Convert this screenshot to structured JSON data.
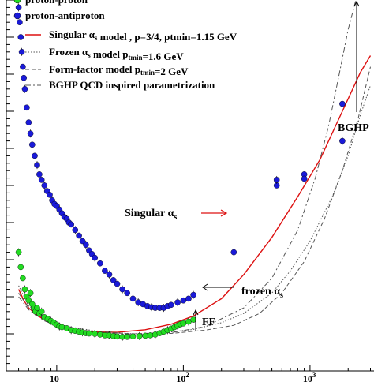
{
  "chart_data": {
    "type": "scatter",
    "x_scale": "log",
    "xlim": [
      4,
      3200
    ],
    "ylim": [
      30,
      130
    ],
    "grid": false,
    "legend_position": "top-left",
    "x_tick_labels": [
      "10",
      "10",
      "10"
    ],
    "x_tick_exponents": [
      "",
      "2",
      "3"
    ],
    "series": [
      {
        "name": "proton-proton",
        "kind": "points",
        "color": "#22dd22",
        "points": [
          [
            5.0,
            62
          ],
          [
            5.2,
            58
          ],
          [
            5.4,
            55
          ],
          [
            5.6,
            52
          ],
          [
            5.8,
            50
          ],
          [
            6.0,
            49
          ],
          [
            6.2,
            51
          ],
          [
            6.4,
            48
          ],
          [
            6.6,
            47
          ],
          [
            6.8,
            46
          ],
          [
            7.0,
            47
          ],
          [
            7.3,
            45.5
          ],
          [
            7.6,
            46
          ],
          [
            8.0,
            44.5
          ],
          [
            8.5,
            44
          ],
          [
            9.0,
            43.5
          ],
          [
            9.5,
            43
          ],
          [
            10,
            42.5
          ],
          [
            10.5,
            42
          ],
          [
            11,
            41.8
          ],
          [
            12,
            41.5
          ],
          [
            13,
            41
          ],
          [
            14,
            40.8
          ],
          [
            15,
            40.6
          ],
          [
            16,
            40.4
          ],
          [
            17,
            40.2
          ],
          [
            18,
            40.1
          ],
          [
            20,
            40
          ],
          [
            22,
            39.8
          ],
          [
            24,
            39.6
          ],
          [
            26,
            39.6
          ],
          [
            28,
            39.4
          ],
          [
            30,
            39.3
          ],
          [
            33,
            39.2
          ],
          [
            36,
            39.2
          ],
          [
            40,
            39.3
          ],
          [
            45,
            39.4
          ],
          [
            50,
            39.5
          ],
          [
            55,
            39.6
          ],
          [
            60,
            39.8
          ],
          [
            65,
            40.2
          ],
          [
            70,
            40.6
          ],
          [
            75,
            41
          ],
          [
            80,
            41.4
          ],
          [
            85,
            41.8
          ],
          [
            90,
            42.2
          ],
          [
            95,
            42.6
          ],
          [
            100,
            42.8
          ],
          [
            110,
            43.3
          ],
          [
            120,
            43.8
          ]
        ]
      },
      {
        "name": "proton-antiproton",
        "kind": "points",
        "color": "#1a1ad8",
        "points": [
          [
            5.0,
            128
          ],
          [
            5.1,
            124
          ],
          [
            5.2,
            120
          ],
          [
            5.3,
            116
          ],
          [
            5.4,
            112
          ],
          [
            5.5,
            109
          ],
          [
            5.6,
            106
          ],
          [
            5.8,
            101
          ],
          [
            6.0,
            97
          ],
          [
            6.2,
            94
          ],
          [
            6.4,
            91
          ],
          [
            6.7,
            88
          ],
          [
            7.0,
            85.5
          ],
          [
            7.3,
            83
          ],
          [
            7.6,
            81.5
          ],
          [
            8.0,
            80
          ],
          [
            8.4,
            78.5
          ],
          [
            8.8,
            77.5
          ],
          [
            9.2,
            76
          ],
          [
            9.6,
            75
          ],
          [
            10,
            74.5
          ],
          [
            10.5,
            73.5
          ],
          [
            11,
            72.5
          ],
          [
            11.5,
            71.5
          ],
          [
            12,
            71
          ],
          [
            12.5,
            70
          ],
          [
            13,
            69.5
          ],
          [
            14,
            68
          ],
          [
            15,
            66.5
          ],
          [
            16,
            65
          ],
          [
            17,
            64
          ],
          [
            18,
            62.5
          ],
          [
            19,
            61.5
          ],
          [
            20,
            60.5
          ],
          [
            22,
            59
          ],
          [
            24,
            57
          ],
          [
            26,
            56
          ],
          [
            28,
            54.5
          ],
          [
            30,
            53.5
          ],
          [
            33,
            52
          ],
          [
            36,
            51
          ],
          [
            40,
            49.5
          ],
          [
            44,
            48.5
          ],
          [
            48,
            48
          ],
          [
            52,
            47.5
          ],
          [
            56,
            47.2
          ],
          [
            60,
            47
          ],
          [
            65,
            47
          ],
          [
            70,
            47
          ],
          [
            75,
            47.5
          ],
          [
            80,
            47.8
          ],
          [
            90,
            48.5
          ],
          [
            100,
            49
          ],
          [
            110,
            49.5
          ],
          [
            120,
            50.5
          ],
          [
            250,
            62
          ],
          [
            546,
            80
          ],
          [
            546,
            81.5
          ],
          [
            900,
            83
          ],
          [
            900,
            81.8
          ],
          [
            1800,
            92
          ],
          [
            1800,
            102
          ]
        ]
      },
      {
        "name": "Singular αs model , p=3/4, ptmin=1.15 GeV",
        "kind": "line",
        "dash": "solid",
        "color": "#dd1111",
        "points": [
          [
            5.0,
            52
          ],
          [
            5.5,
            49
          ],
          [
            6,
            47
          ],
          [
            7,
            45
          ],
          [
            8,
            43.8
          ],
          [
            10,
            42.5
          ],
          [
            12,
            41.7
          ],
          [
            15,
            41
          ],
          [
            20,
            40.5
          ],
          [
            30,
            40.4
          ],
          [
            50,
            41.1
          ],
          [
            80,
            42.6
          ],
          [
            120,
            44.8
          ],
          [
            200,
            49.5
          ],
          [
            300,
            56
          ],
          [
            500,
            66
          ],
          [
            800,
            77
          ],
          [
            1200,
            87
          ],
          [
            1800,
            100
          ],
          [
            2500,
            110.5
          ],
          [
            3000,
            115
          ]
        ]
      },
      {
        "name": "Frozen αs model ptmin=1.6 GeV",
        "kind": "line",
        "dash": "dotted",
        "color": "#555555",
        "points": [
          [
            5,
            53
          ],
          [
            6,
            47.5
          ],
          [
            8,
            44.5
          ],
          [
            12,
            42
          ],
          [
            20,
            40.8
          ],
          [
            40,
            40
          ],
          [
            70,
            40.3
          ],
          [
            120,
            41.2
          ],
          [
            200,
            43
          ],
          [
            300,
            45.5
          ],
          [
            500,
            51
          ],
          [
            700,
            57
          ],
          [
            1000,
            65
          ],
          [
            1500,
            77
          ],
          [
            2000,
            88
          ],
          [
            2500,
            99
          ],
          [
            3000,
            107
          ]
        ]
      },
      {
        "name": "Form-factor model ptmin=2 GeV",
        "kind": "line",
        "dash": "dashed",
        "color": "#555555",
        "points": [
          [
            5,
            51
          ],
          [
            6,
            47
          ],
          [
            8,
            44
          ],
          [
            12,
            41.5
          ],
          [
            20,
            40.5
          ],
          [
            40,
            40
          ],
          [
            80,
            40.1
          ],
          [
            150,
            41
          ],
          [
            250,
            42.3
          ],
          [
            400,
            45.5
          ],
          [
            600,
            51
          ],
          [
            900,
            59.5
          ],
          [
            1300,
            71
          ],
          [
            1800,
            84
          ],
          [
            2400,
            98
          ],
          [
            3000,
            112
          ]
        ]
      },
      {
        "name": "BGHP QCD inspired parametrization",
        "kind": "line",
        "dash": "dashdot",
        "color": "#555555",
        "points": [
          [
            5,
            50
          ],
          [
            6,
            46.5
          ],
          [
            8,
            43.5
          ],
          [
            12,
            41.2
          ],
          [
            20,
            40.2
          ],
          [
            40,
            39.8
          ],
          [
            80,
            40.3
          ],
          [
            150,
            42
          ],
          [
            300,
            47
          ],
          [
            500,
            55
          ],
          [
            800,
            68
          ],
          [
            1100,
            82
          ],
          [
            1400,
            96
          ],
          [
            1700,
            110
          ],
          [
            2000,
            122
          ],
          [
            2300,
            130
          ]
        ]
      }
    ],
    "annotations": [
      {
        "text": "BGHP"
      },
      {
        "text": "Singular α",
        "subscript": "s"
      },
      {
        "text": "frozen α",
        "subscript": "s"
      },
      {
        "text": "FF"
      }
    ],
    "legend": [
      {
        "series": "proton-proton",
        "text": "proton-proton"
      },
      {
        "series": "proton-antiproton",
        "text": "proton-antiproton"
      },
      {
        "series": "Singular αs model , p=3/4, ptmin=1.15 GeV",
        "text": "Singular α",
        "sub": "s",
        "rest": "  model , p=3/4, ptmin=1.15 GeV"
      },
      {
        "series": "Frozen αs model ptmin=1.6 GeV",
        "text": "Frozen α",
        "sub": "s",
        "rest": "  model p",
        "sub2": "tmin",
        "rest2": "=1.6 GeV"
      },
      {
        "series": "Form-factor model ptmin=2 GeV",
        "text": "Form-factor model p",
        "sub": "tmin",
        "rest": "=2 GeV"
      },
      {
        "series": "BGHP QCD inspired parametrization",
        "text": "BGHP QCD inspired parametrization"
      }
    ]
  }
}
